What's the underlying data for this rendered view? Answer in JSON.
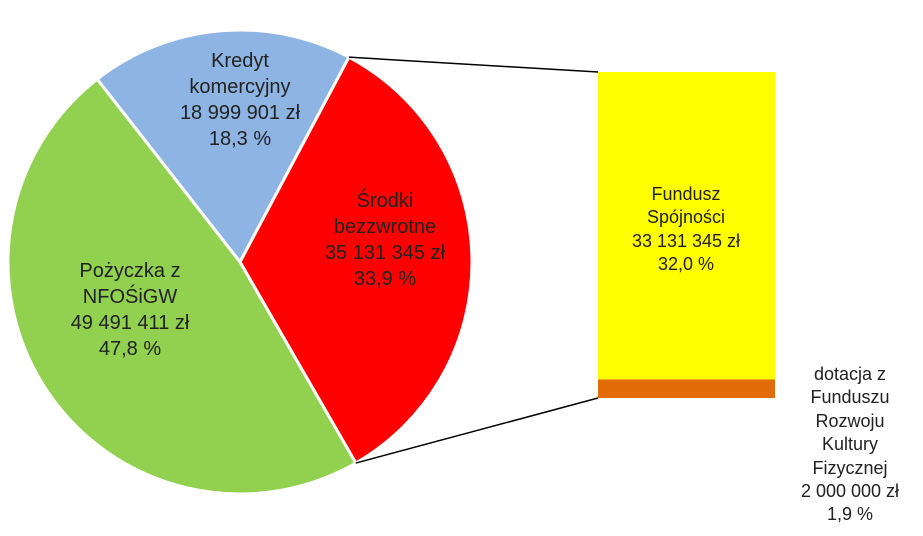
{
  "chart_data": {
    "type": "pie-of-bar",
    "categories": [
      "Kredyt komercyjny",
      "Środki bezzwrotne",
      "Pożyczka z NFOŚiGW"
    ],
    "values": [
      18999901,
      35131345,
      49491411
    ],
    "value_labels": [
      "18 999 901 zł",
      "35 131 345 zł",
      "49 491 411 zł"
    ],
    "percents": [
      18.3,
      33.9,
      47.8
    ],
    "percent_labels": [
      "18,3 %",
      "33,9 %",
      "47,8 %"
    ],
    "colors": [
      "#8db4e2",
      "#ff0000",
      "#92d050"
    ],
    "bar": {
      "categories": [
        "Fundusz Spójności",
        "dotacja z Funduszu Rozwoju Kultury Fizycznej"
      ],
      "values": [
        33131345,
        2000000
      ],
      "value_labels": [
        "33 131 345 zł",
        "2 000 000 zł"
      ],
      "percents": [
        32.0,
        1.9
      ],
      "percent_labels": [
        "32,0 %",
        "1,9 %"
      ],
      "colors": [
        "#ffff00",
        "#e36c09"
      ]
    }
  }
}
